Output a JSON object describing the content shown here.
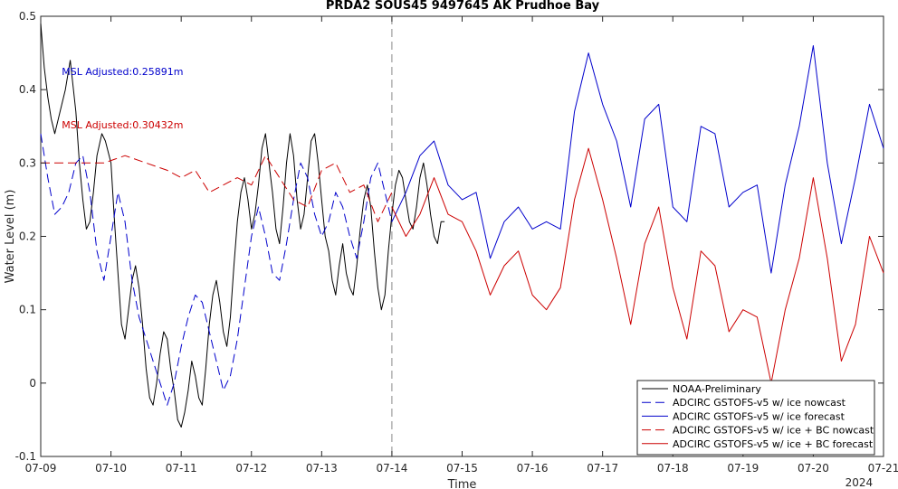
{
  "chart_data": {
    "type": "line",
    "title": "PRDA2 SOUS45 9497645 AK Prudhoe Bay",
    "xlabel": "Time",
    "ylabel": "Water Level (m)",
    "x_tick_labels": [
      "07-09",
      "07-10",
      "07-11",
      "07-12",
      "07-13",
      "07-14",
      "07-15",
      "07-16",
      "07-17",
      "07-18",
      "07-19",
      "07-20",
      "07-21"
    ],
    "x_secondary_label": "2024",
    "xlim_days": [
      9,
      21
    ],
    "ylim": [
      -0.1,
      0.5
    ],
    "y_ticks": [
      -0.1,
      0,
      0.1,
      0.2,
      0.3,
      0.4,
      0.5
    ],
    "y_tick_labels": [
      "-0.1",
      "0",
      "0.1",
      "0.2",
      "0.3",
      "0.4",
      "0.5"
    ],
    "grid": false,
    "legend_position": "bottom-right",
    "nowcast_forecast_divider_day": 14,
    "annotations": [
      {
        "text": "MSL Adjusted:0.25891m",
        "color": "#0000cc",
        "x_day": 9.3,
        "y": 0.42
      },
      {
        "text": "MSL Adjusted:0.30432m",
        "color": "#cc0000",
        "x_day": 9.3,
        "y": 0.347
      }
    ],
    "series": [
      {
        "name": "NOAA-Preliminary",
        "color": "#000000",
        "dash": "solid",
        "x": [
          9.0,
          9.05,
          9.1,
          9.15,
          9.2,
          9.25,
          9.3,
          9.35,
          9.42,
          9.5,
          9.55,
          9.6,
          9.65,
          9.7,
          9.75,
          9.8,
          9.87,
          9.92,
          10.0,
          10.05,
          10.1,
          10.15,
          10.2,
          10.25,
          10.3,
          10.35,
          10.4,
          10.45,
          10.5,
          10.55,
          10.6,
          10.65,
          10.7,
          10.75,
          10.8,
          10.85,
          10.9,
          10.95,
          11.0,
          11.05,
          11.1,
          11.15,
          11.2,
          11.25,
          11.3,
          11.35,
          11.4,
          11.45,
          11.5,
          11.55,
          11.6,
          11.65,
          11.7,
          11.75,
          11.8,
          11.85,
          11.9,
          11.95,
          12.0,
          12.05,
          12.1,
          12.15,
          12.2,
          12.25,
          12.3,
          12.35,
          12.4,
          12.45,
          12.5,
          12.55,
          12.6,
          12.65,
          12.7,
          12.75,
          12.8,
          12.85,
          12.9,
          12.95,
          13.0,
          13.05,
          13.1,
          13.15,
          13.2,
          13.25,
          13.3,
          13.35,
          13.4,
          13.45,
          13.5,
          13.55,
          13.6,
          13.65,
          13.7,
          13.75,
          13.8,
          13.85,
          13.9,
          13.95,
          14.0,
          14.05,
          14.1,
          14.15,
          14.2,
          14.25,
          14.3,
          14.35,
          14.4,
          14.45,
          14.5,
          14.55,
          14.6,
          14.65,
          14.7,
          14.75
        ],
        "y": [
          0.49,
          0.43,
          0.39,
          0.36,
          0.34,
          0.36,
          0.38,
          0.4,
          0.44,
          0.37,
          0.3,
          0.25,
          0.21,
          0.22,
          0.26,
          0.31,
          0.34,
          0.33,
          0.3,
          0.22,
          0.15,
          0.08,
          0.06,
          0.1,
          0.14,
          0.16,
          0.13,
          0.08,
          0.02,
          -0.02,
          -0.03,
          0.0,
          0.04,
          0.07,
          0.06,
          0.02,
          -0.01,
          -0.05,
          -0.06,
          -0.04,
          -0.01,
          0.03,
          0.01,
          -0.02,
          -0.03,
          0.02,
          0.08,
          0.12,
          0.14,
          0.11,
          0.07,
          0.05,
          0.09,
          0.16,
          0.22,
          0.26,
          0.28,
          0.25,
          0.21,
          0.23,
          0.27,
          0.32,
          0.34,
          0.3,
          0.26,
          0.21,
          0.19,
          0.24,
          0.3,
          0.34,
          0.31,
          0.25,
          0.21,
          0.23,
          0.28,
          0.33,
          0.34,
          0.3,
          0.25,
          0.2,
          0.18,
          0.14,
          0.12,
          0.16,
          0.19,
          0.15,
          0.13,
          0.12,
          0.16,
          0.21,
          0.25,
          0.27,
          0.24,
          0.18,
          0.13,
          0.1,
          0.12,
          0.18,
          0.23,
          0.27,
          0.29,
          0.28,
          0.25,
          0.22,
          0.21,
          0.24,
          0.28,
          0.3,
          0.27,
          0.23,
          0.2,
          0.19,
          0.22,
          0.22
        ]
      },
      {
        "name": "ADCIRC GSTOFS-v5 w/ ice nowcast",
        "color": "#0000cc",
        "dash": "dashed",
        "x": [
          9.0,
          9.1,
          9.2,
          9.3,
          9.4,
          9.5,
          9.6,
          9.7,
          9.8,
          9.9,
          10.0,
          10.1,
          10.2,
          10.3,
          10.4,
          10.5,
          10.6,
          10.7,
          10.8,
          10.9,
          11.0,
          11.1,
          11.2,
          11.3,
          11.4,
          11.5,
          11.6,
          11.7,
          11.8,
          11.9,
          12.0,
          12.1,
          12.2,
          12.3,
          12.4,
          12.5,
          12.6,
          12.7,
          12.8,
          12.9,
          13.0,
          13.1,
          13.2,
          13.3,
          13.4,
          13.5,
          13.6,
          13.7,
          13.8,
          13.9,
          14.0
        ],
        "y": [
          0.34,
          0.28,
          0.23,
          0.24,
          0.26,
          0.3,
          0.31,
          0.26,
          0.18,
          0.14,
          0.2,
          0.26,
          0.22,
          0.14,
          0.09,
          0.06,
          0.03,
          0.0,
          -0.03,
          0.0,
          0.05,
          0.09,
          0.12,
          0.11,
          0.07,
          0.03,
          -0.01,
          0.01,
          0.06,
          0.13,
          0.2,
          0.24,
          0.2,
          0.15,
          0.14,
          0.19,
          0.25,
          0.3,
          0.28,
          0.23,
          0.2,
          0.22,
          0.26,
          0.24,
          0.2,
          0.17,
          0.22,
          0.28,
          0.3,
          0.26,
          0.22
        ]
      },
      {
        "name": "ADCIRC GSTOFS-v5 w/ ice forecast",
        "color": "#0000cc",
        "dash": "solid",
        "x": [
          14.0,
          14.2,
          14.4,
          14.6,
          14.8,
          15.0,
          15.2,
          15.4,
          15.6,
          15.8,
          16.0,
          16.2,
          16.4,
          16.6,
          16.8,
          17.0,
          17.2,
          17.4,
          17.6,
          17.8,
          18.0,
          18.2,
          18.4,
          18.6,
          18.8,
          19.0,
          19.2,
          19.4,
          19.6,
          19.8,
          20.0,
          20.2,
          20.4,
          20.6,
          20.8,
          21.0
        ],
        "y": [
          0.22,
          0.26,
          0.31,
          0.33,
          0.27,
          0.25,
          0.26,
          0.17,
          0.22,
          0.24,
          0.21,
          0.22,
          0.21,
          0.37,
          0.45,
          0.38,
          0.33,
          0.24,
          0.36,
          0.38,
          0.24,
          0.22,
          0.35,
          0.34,
          0.24,
          0.26,
          0.27,
          0.15,
          0.27,
          0.35,
          0.46,
          0.3,
          0.19,
          0.28,
          0.38,
          0.32
        ]
      },
      {
        "name": "ADCIRC GSTOFS-v5 w/ ice + BC nowcast",
        "color": "#cc0000",
        "dash": "dashed",
        "x": [
          9.0,
          9.3,
          9.6,
          9.9,
          10.2,
          10.5,
          10.8,
          11.0,
          11.2,
          11.4,
          11.6,
          11.8,
          12.0,
          12.2,
          12.4,
          12.6,
          12.8,
          13.0,
          13.2,
          13.4,
          13.6,
          13.8,
          14.0
        ],
        "y": [
          0.3,
          0.3,
          0.3,
          0.3,
          0.31,
          0.3,
          0.29,
          0.28,
          0.29,
          0.26,
          0.27,
          0.28,
          0.27,
          0.31,
          0.28,
          0.25,
          0.24,
          0.29,
          0.3,
          0.26,
          0.27,
          0.22,
          0.26
        ]
      },
      {
        "name": "ADCIRC GSTOFS-v5 w/ ice + BC forecast",
        "color": "#cc0000",
        "dash": "solid",
        "x": [
          14.0,
          14.2,
          14.4,
          14.6,
          14.8,
          15.0,
          15.2,
          15.4,
          15.6,
          15.8,
          16.0,
          16.2,
          16.4,
          16.6,
          16.8,
          17.0,
          17.2,
          17.4,
          17.6,
          17.8,
          18.0,
          18.2,
          18.4,
          18.6,
          18.8,
          19.0,
          19.2,
          19.4,
          19.6,
          19.8,
          20.0,
          20.2,
          20.4,
          20.6,
          20.8,
          21.0
        ],
        "y": [
          0.24,
          0.2,
          0.23,
          0.28,
          0.23,
          0.22,
          0.18,
          0.12,
          0.16,
          0.18,
          0.12,
          0.1,
          0.13,
          0.25,
          0.32,
          0.25,
          0.17,
          0.08,
          0.19,
          0.24,
          0.13,
          0.06,
          0.18,
          0.16,
          0.07,
          0.1,
          0.09,
          0.0,
          0.1,
          0.17,
          0.28,
          0.17,
          0.03,
          0.08,
          0.2,
          0.15
        ]
      }
    ]
  }
}
